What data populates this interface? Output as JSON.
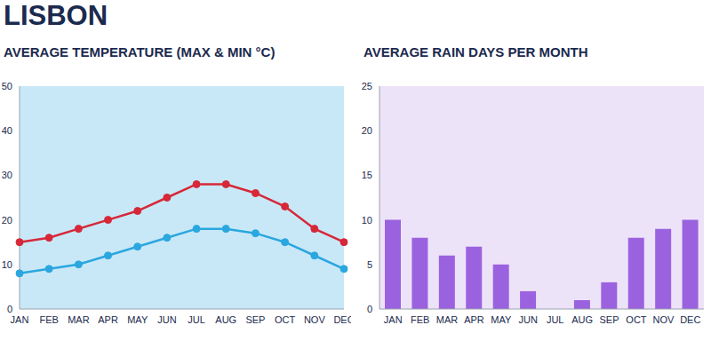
{
  "title": "LISBON",
  "chart_data": [
    {
      "type": "line",
      "title": "AVERAGE TEMPERATURE (MAX & MIN °C)",
      "categories": [
        "JAN",
        "FEB",
        "MAR",
        "APR",
        "MAY",
        "JUN",
        "JUL",
        "AUG",
        "SEP",
        "OCT",
        "NOV",
        "DEC"
      ],
      "series": [
        {
          "color": "#d62839",
          "marker": "circle",
          "values": [
            15,
            16,
            18,
            20,
            22,
            25,
            28,
            28,
            26,
            23,
            18,
            15
          ]
        },
        {
          "color": "#2aa7df",
          "marker": "circle",
          "values": [
            8,
            9,
            10,
            12,
            14,
            16,
            18,
            18,
            17,
            15,
            12,
            9
          ]
        }
      ],
      "ylim": [
        0,
        50
      ],
      "yticks": [
        0,
        10,
        20,
        30,
        40,
        50
      ],
      "grid": false
    },
    {
      "type": "bar",
      "title": "AVERAGE RAIN DAYS PER MONTH",
      "categories": [
        "JAN",
        "FEB",
        "MAR",
        "APR",
        "MAY",
        "JUN",
        "JUL",
        "AUG",
        "SEP",
        "OCT",
        "NOV",
        "DEC"
      ],
      "values": [
        10,
        8,
        6,
        7,
        5,
        2,
        0,
        1,
        3,
        8,
        9,
        10
      ],
      "color": "#9b62e0",
      "ylim": [
        0,
        25
      ],
      "yticks": [
        0,
        5,
        10,
        15,
        20,
        25
      ],
      "grid": false
    }
  ]
}
